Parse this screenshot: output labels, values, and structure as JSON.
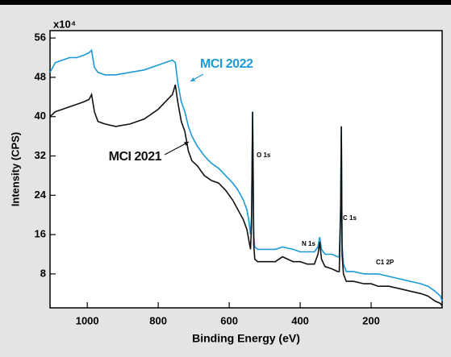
{
  "chart_data": {
    "type": "line",
    "x_label": "Binding Energy (eV)",
    "y_label": "Intensity (CPS)",
    "y_multiplier": "x10⁴",
    "x": [
      1105,
      1090,
      1070,
      1050,
      1030,
      1010,
      995,
      988,
      980,
      970,
      950,
      920,
      880,
      840,
      800,
      780,
      760,
      752,
      745,
      735,
      725,
      715,
      705,
      690,
      670,
      650,
      630,
      610,
      590,
      575,
      560,
      550,
      545,
      540,
      537,
      534,
      531,
      528,
      520,
      500,
      470,
      450,
      420,
      400,
      380,
      360,
      350,
      345,
      340,
      330,
      310,
      295,
      290,
      286,
      284,
      282,
      278,
      270,
      250,
      220,
      200,
      180,
      150,
      120,
      90,
      60,
      40,
      20,
      5,
      0
    ],
    "series": [
      {
        "name": "MCI 2022",
        "color": "#1a9ad6",
        "values": [
          49,
          51,
          51.5,
          52,
          52,
          52.5,
          53,
          53.5,
          50,
          49,
          48.5,
          48.5,
          49,
          49.5,
          50.5,
          51,
          51.5,
          51,
          47,
          43,
          41,
          38,
          36,
          34,
          32,
          30.5,
          29.5,
          28,
          26.5,
          25,
          23,
          21,
          19,
          16,
          20,
          41,
          16,
          13.5,
          13,
          13,
          13,
          13.5,
          13,
          12.5,
          12.5,
          12.5,
          13.5,
          15.5,
          13,
          12,
          12,
          11.5,
          11.5,
          22,
          38,
          14,
          10,
          8.5,
          8.5,
          8,
          8,
          8,
          7.5,
          7,
          6.5,
          6,
          5.5,
          4.5,
          3.5,
          2.5
        ]
      },
      {
        "name": "MCI 2021",
        "color": "#111111",
        "values": [
          40,
          41,
          41.5,
          42,
          42.5,
          43,
          43.5,
          44.5,
          41,
          39,
          38.5,
          38,
          38.5,
          39.5,
          41.5,
          43,
          44.5,
          46.5,
          43,
          39,
          37,
          33,
          31,
          30,
          28,
          27,
          26.5,
          25,
          23,
          21,
          19,
          17,
          15,
          13,
          18,
          41,
          14,
          11,
          10.5,
          10.5,
          10.5,
          11.5,
          10.5,
          10.5,
          10,
          10,
          12,
          14.5,
          11,
          9.5,
          9,
          8.5,
          8.5,
          20,
          38,
          12,
          8,
          6.5,
          6.5,
          6,
          6,
          5.5,
          5.5,
          5,
          4.5,
          4,
          3.5,
          2.5,
          2,
          1.5
        ]
      }
    ],
    "annotations": [
      {
        "text": "O 1s"
      },
      {
        "text": "N 1s"
      },
      {
        "text": "C 1s"
      },
      {
        "text": "C1 2P"
      }
    ],
    "xlim": [
      1105,
      0
    ],
    "xticks": [
      1000,
      800,
      600,
      400,
      200
    ],
    "ylim": [
      1.1,
      57.5
    ],
    "yticks": [
      8,
      16,
      24,
      32,
      40,
      48,
      56
    ],
    "grid": false
  }
}
